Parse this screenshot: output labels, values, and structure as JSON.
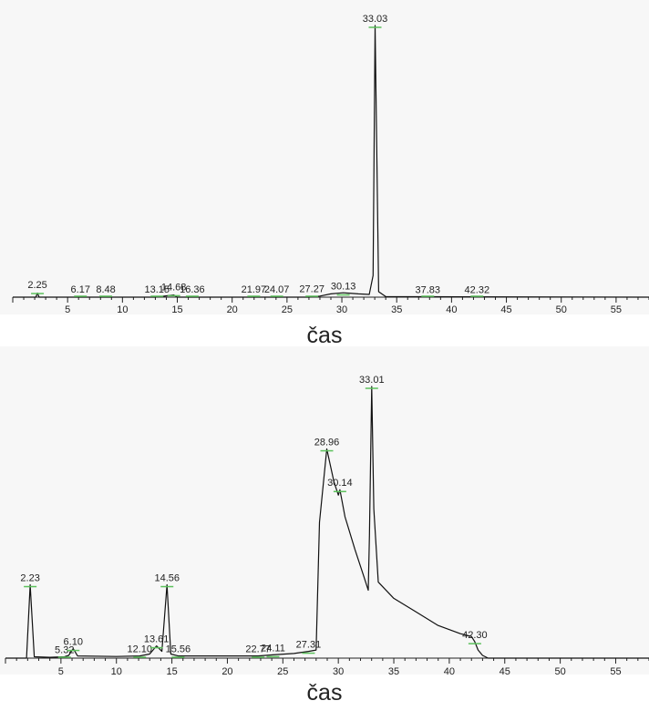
{
  "colors": {
    "trace": "#111111",
    "axis": "#222222",
    "baseline_marker": "#5cc15c",
    "background": "#f7f7f7"
  },
  "chart_data": [
    {
      "type": "line",
      "xlabel": "čas",
      "xlim": [
        0,
        58
      ],
      "xticks": [
        5,
        10,
        15,
        20,
        25,
        30,
        35,
        40,
        45,
        50,
        55
      ],
      "grid": false,
      "peaks": [
        {
          "label": "2.25",
          "x": 2.25,
          "y": 2
        },
        {
          "label": "6.17",
          "x": 6.17,
          "y": 0.3
        },
        {
          "label": "8.48",
          "x": 8.48,
          "y": 0.3
        },
        {
          "label": "13.15",
          "x": 13.15,
          "y": 0.4
        },
        {
          "label": "14.68",
          "x": 14.68,
          "y": 1.2
        },
        {
          "label": "16.36",
          "x": 16.36,
          "y": 0.3
        },
        {
          "label": "21.97",
          "x": 21.97,
          "y": 0.3
        },
        {
          "label": "24.07",
          "x": 24.07,
          "y": 0.3
        },
        {
          "label": "27.27",
          "x": 27.27,
          "y": 0.5
        },
        {
          "label": "30.13",
          "x": 30.13,
          "y": 1.5
        },
        {
          "label": "33.03",
          "x": 33.03,
          "y": 100
        },
        {
          "label": "37.83",
          "x": 37.83,
          "y": 0.2
        },
        {
          "label": "42.32",
          "x": 42.32,
          "y": 0.2
        }
      ],
      "trace": [
        [
          0,
          0
        ],
        [
          2.1,
          0
        ],
        [
          2.25,
          1.5
        ],
        [
          2.4,
          0
        ],
        [
          13,
          0
        ],
        [
          14.68,
          0.8
        ],
        [
          15,
          0
        ],
        [
          27,
          0
        ],
        [
          28,
          0.4
        ],
        [
          29,
          1.2
        ],
        [
          30.13,
          1.6
        ],
        [
          31.5,
          1.2
        ],
        [
          32.5,
          1.0
        ],
        [
          32.85,
          8
        ],
        [
          33.03,
          100
        ],
        [
          33.2,
          50
        ],
        [
          33.35,
          2
        ],
        [
          34,
          0.2
        ],
        [
          58,
          0
        ]
      ]
    },
    {
      "type": "line",
      "xlabel": "čas",
      "xlim": [
        0,
        58
      ],
      "xticks": [
        5,
        10,
        15,
        20,
        25,
        30,
        35,
        40,
        45,
        50,
        55
      ],
      "grid": false,
      "peaks": [
        {
          "label": "2.23",
          "x": 2.23,
          "y": 27
        },
        {
          "label": "5.32",
          "x": 5.32,
          "y": 0.5
        },
        {
          "label": "6.10",
          "x": 6.1,
          "y": 3.5
        },
        {
          "label": "12.10",
          "x": 12.1,
          "y": 0.8
        },
        {
          "label": "13.61",
          "x": 13.61,
          "y": 4.5
        },
        {
          "label": "14.56",
          "x": 14.56,
          "y": 27
        },
        {
          "label": "15.56",
          "x": 15.56,
          "y": 0.8
        },
        {
          "label": "22.77",
          "x": 22.77,
          "y": 0.8
        },
        {
          "label": "24.11",
          "x": 24.11,
          "y": 1.2
        },
        {
          "label": "27.31",
          "x": 27.31,
          "y": 2.5
        },
        {
          "label": "28.96",
          "x": 28.96,
          "y": 77
        },
        {
          "label": "30.14",
          "x": 30.14,
          "y": 62
        },
        {
          "label": "33.01",
          "x": 33.01,
          "y": 100
        },
        {
          "label": "42.30",
          "x": 42.3,
          "y": 6
        }
      ],
      "trace": [
        [
          0,
          0
        ],
        [
          1.9,
          0
        ],
        [
          2.23,
          27
        ],
        [
          2.6,
          0.5
        ],
        [
          4,
          0.3
        ],
        [
          5.32,
          0.5
        ],
        [
          5.7,
          1
        ],
        [
          6.1,
          3.5
        ],
        [
          6.5,
          0.8
        ],
        [
          10,
          0.6
        ],
        [
          12.1,
          0.8
        ],
        [
          13,
          1.5
        ],
        [
          13.61,
          4.5
        ],
        [
          14.1,
          2.5
        ],
        [
          14.56,
          27
        ],
        [
          14.9,
          1.5
        ],
        [
          15.56,
          0.8
        ],
        [
          20,
          0.8
        ],
        [
          22.77,
          0.8
        ],
        [
          24.11,
          1.2
        ],
        [
          26,
          1.7
        ],
        [
          27.31,
          2.5
        ],
        [
          28,
          3
        ],
        [
          28.3,
          50
        ],
        [
          28.96,
          77
        ],
        [
          29.6,
          65
        ],
        [
          30.0,
          60
        ],
        [
          30.14,
          62
        ],
        [
          30.6,
          52
        ],
        [
          31.5,
          40
        ],
        [
          32.3,
          30
        ],
        [
          32.7,
          25
        ],
        [
          32.8,
          45
        ],
        [
          33.01,
          100
        ],
        [
          33.2,
          55
        ],
        [
          33.6,
          28
        ],
        [
          35,
          22
        ],
        [
          37,
          17
        ],
        [
          39,
          12
        ],
        [
          41,
          9
        ],
        [
          42,
          8
        ],
        [
          42.3,
          6
        ],
        [
          42.6,
          3
        ],
        [
          43,
          1
        ],
        [
          43.5,
          0
        ],
        [
          58,
          0
        ]
      ]
    }
  ]
}
